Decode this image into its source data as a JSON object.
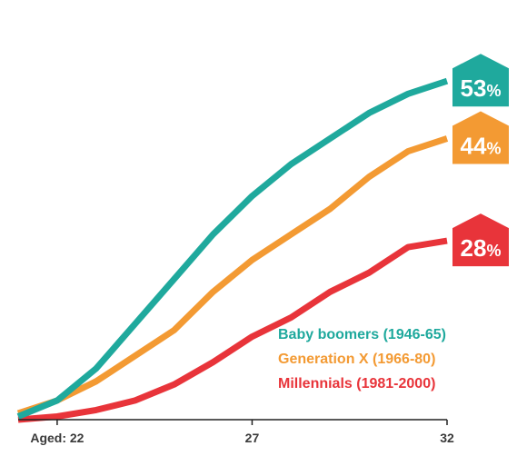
{
  "chart_data": {
    "type": "line",
    "x": [
      21,
      22,
      23,
      24,
      25,
      26,
      27,
      28,
      29,
      30,
      31,
      32
    ],
    "xlim": [
      21,
      32
    ],
    "ylim": [
      0,
      60
    ],
    "x_ticks": [
      {
        "value": 22,
        "label": "Aged: 22"
      },
      {
        "value": 27,
        "label": "27"
      },
      {
        "value": 32,
        "label": "32"
      }
    ],
    "grid": false,
    "legend_placement": "bottom-right",
    "series": [
      {
        "key": "boomers",
        "name": "Baby boomers (1946-65)",
        "color": "#1fa99d",
        "values": [
          0.5,
          3,
          8,
          15,
          22,
          29,
          35,
          40,
          44,
          48,
          51,
          53
        ],
        "end_value": "53",
        "unit": "%"
      },
      {
        "key": "genx",
        "name": "Generation X (1966-80)",
        "color": "#f39a33",
        "values": [
          1,
          3,
          6,
          10,
          14,
          20,
          25,
          29,
          33,
          38,
          42,
          44
        ],
        "end_value": "44",
        "unit": "%"
      },
      {
        "key": "millennials",
        "name": "Millennials (1981-2000)",
        "color": "#e8343a",
        "values": [
          0,
          0.5,
          1.5,
          3,
          5.5,
          9,
          13,
          16,
          20,
          23,
          27,
          28
        ],
        "end_value": "28",
        "unit": "%"
      }
    ]
  }
}
